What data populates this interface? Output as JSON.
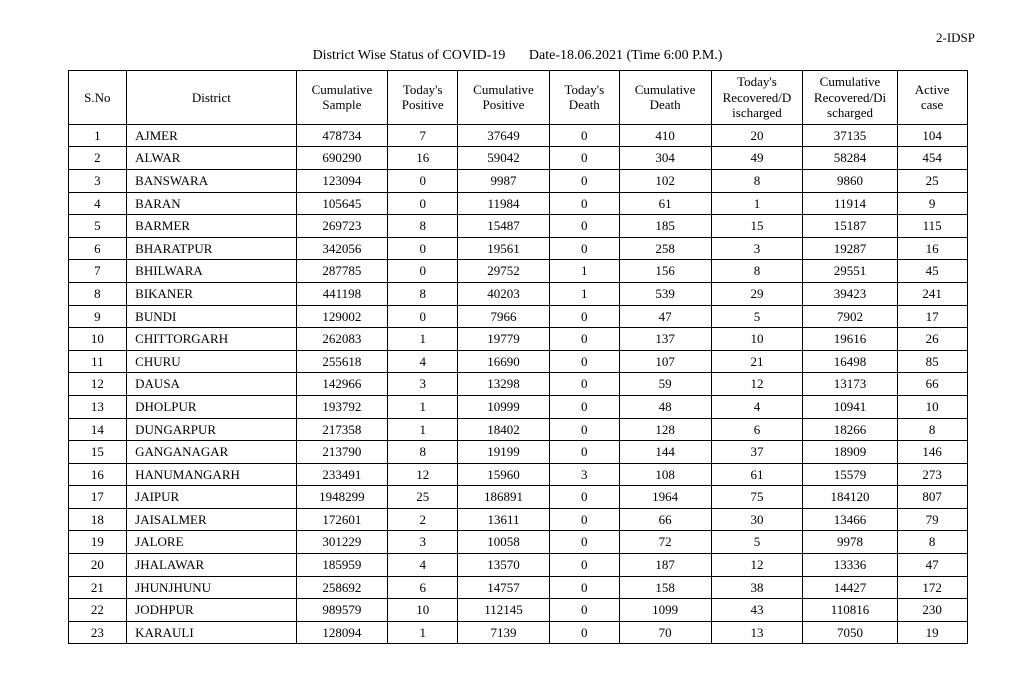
{
  "header_right": "2-IDSP",
  "title": "District Wise Status of  COVID-19",
  "title_date": "Date-18.06.2021 (Time 6:00 P.M.)",
  "columns": [
    "S.No",
    "District",
    "Cumulative Sample",
    "Today's Positive",
    "Cumulative Positive",
    "Today's Death",
    "Cumulative Death",
    "Today's Recovered/D ischarged",
    "Cumulative Recovered/Di scharged",
    "Active case"
  ],
  "rows": [
    [
      "1",
      "AJMER",
      "478734",
      "7",
      "37649",
      "0",
      "410",
      "20",
      "37135",
      "104"
    ],
    [
      "2",
      "ALWAR",
      "690290",
      "16",
      "59042",
      "0",
      "304",
      "49",
      "58284",
      "454"
    ],
    [
      "3",
      "BANSWARA",
      "123094",
      "0",
      "9987",
      "0",
      "102",
      "8",
      "9860",
      "25"
    ],
    [
      "4",
      "BARAN",
      "105645",
      "0",
      "11984",
      "0",
      "61",
      "1",
      "11914",
      "9"
    ],
    [
      "5",
      "BARMER",
      "269723",
      "8",
      "15487",
      "0",
      "185",
      "15",
      "15187",
      "115"
    ],
    [
      "6",
      "BHARATPUR",
      "342056",
      "0",
      "19561",
      "0",
      "258",
      "3",
      "19287",
      "16"
    ],
    [
      "7",
      "BHILWARA",
      "287785",
      "0",
      "29752",
      "1",
      "156",
      "8",
      "29551",
      "45"
    ],
    [
      "8",
      "BIKANER",
      "441198",
      "8",
      "40203",
      "1",
      "539",
      "29",
      "39423",
      "241"
    ],
    [
      "9",
      "BUNDI",
      "129002",
      "0",
      "7966",
      "0",
      "47",
      "5",
      "7902",
      "17"
    ],
    [
      "10",
      "CHITTORGARH",
      "262083",
      "1",
      "19779",
      "0",
      "137",
      "10",
      "19616",
      "26"
    ],
    [
      "11",
      "CHURU",
      "255618",
      "4",
      "16690",
      "0",
      "107",
      "21",
      "16498",
      "85"
    ],
    [
      "12",
      "DAUSA",
      "142966",
      "3",
      "13298",
      "0",
      "59",
      "12",
      "13173",
      "66"
    ],
    [
      "13",
      "DHOLPUR",
      "193792",
      "1",
      "10999",
      "0",
      "48",
      "4",
      "10941",
      "10"
    ],
    [
      "14",
      "DUNGARPUR",
      "217358",
      "1",
      "18402",
      "0",
      "128",
      "6",
      "18266",
      "8"
    ],
    [
      "15",
      "GANGANAGAR",
      "213790",
      "8",
      "19199",
      "0",
      "144",
      "37",
      "18909",
      "146"
    ],
    [
      "16",
      "HANUMANGARH",
      "233491",
      "12",
      "15960",
      "3",
      "108",
      "61",
      "15579",
      "273"
    ],
    [
      "17",
      "JAIPUR",
      "1948299",
      "25",
      "186891",
      "0",
      "1964",
      "75",
      "184120",
      "807"
    ],
    [
      "18",
      "JAISALMER",
      "172601",
      "2",
      "13611",
      "0",
      "66",
      "30",
      "13466",
      "79"
    ],
    [
      "19",
      "JALORE",
      "301229",
      "3",
      "10058",
      "0",
      "72",
      "5",
      "9978",
      "8"
    ],
    [
      "20",
      "JHALAWAR",
      "185959",
      "4",
      "13570",
      "0",
      "187",
      "12",
      "13336",
      "47"
    ],
    [
      "21",
      "JHUNJHUNU",
      "258692",
      "6",
      "14757",
      "0",
      "158",
      "38",
      "14427",
      "172"
    ],
    [
      "22",
      "JODHPUR",
      "989579",
      "10",
      "112145",
      "0",
      "1099",
      "43",
      "110816",
      "230"
    ],
    [
      "23",
      "KARAULI",
      "128094",
      "1",
      "7139",
      "0",
      "70",
      "13",
      "7050",
      "19"
    ]
  ]
}
